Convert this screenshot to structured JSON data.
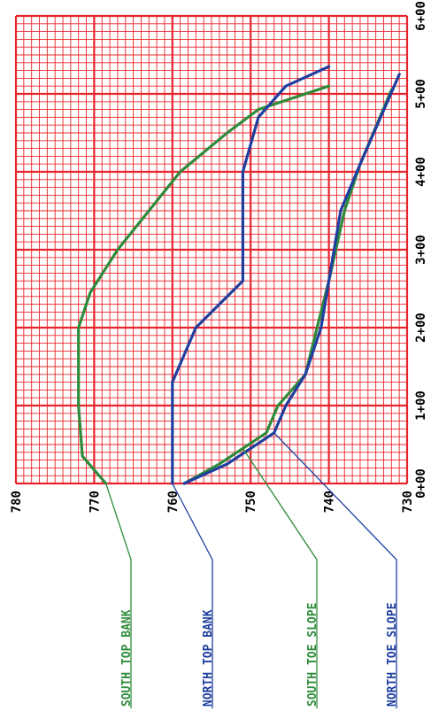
{
  "chart_data": {
    "type": "line",
    "orientation": "rotated",
    "x_label": "",
    "y_label": "",
    "x_ticks": [
      "0+00",
      "1+00",
      "2+00",
      "3+00",
      "4+00",
      "5+00",
      "6+00"
    ],
    "y_ticks": [
      "730",
      "740",
      "750",
      "760",
      "770",
      "780"
    ],
    "x_range": [
      0,
      600
    ],
    "y_range": [
      730,
      780
    ],
    "grid": true,
    "grid_color": "#e8242c",
    "series": [
      {
        "name": "SOUTH TOP BANK",
        "color": "#2e8b3a",
        "points": [
          [
            0,
            768.5
          ],
          [
            35,
            771.5
          ],
          [
            100,
            772
          ],
          [
            200,
            772
          ],
          [
            245,
            770.5
          ],
          [
            300,
            767
          ],
          [
            350,
            763
          ],
          [
            400,
            759
          ],
          [
            450,
            753
          ],
          [
            480,
            749
          ],
          [
            510,
            740
          ]
        ]
      },
      {
        "name": "NORTH TOP BANK",
        "color": "#1f3f9f",
        "points": [
          [
            0,
            760
          ],
          [
            130,
            760
          ],
          [
            200,
            757
          ],
          [
            260,
            751
          ],
          [
            350,
            751
          ],
          [
            400,
            751
          ],
          [
            470,
            749
          ],
          [
            510,
            745.5
          ],
          [
            535,
            740
          ]
        ]
      },
      {
        "name": "SOUTH TOE SLOPE",
        "color": "#2e8b3a",
        "points": [
          [
            0,
            758.5
          ],
          [
            25,
            754
          ],
          [
            45,
            751
          ],
          [
            65,
            748
          ],
          [
            100,
            746.5
          ],
          [
            140,
            743
          ],
          [
            200,
            741.5
          ],
          [
            260,
            740
          ],
          [
            350,
            738
          ],
          [
            410,
            736
          ],
          [
            505,
            732
          ]
        ]
      },
      {
        "name": "NORTH TOE SLOPE",
        "color": "#1f3f9f",
        "points": [
          [
            0,
            758.5
          ],
          [
            25,
            753
          ],
          [
            45,
            750
          ],
          [
            65,
            747
          ],
          [
            100,
            745.5
          ],
          [
            140,
            743
          ],
          [
            200,
            741
          ],
          [
            260,
            740
          ],
          [
            350,
            738.5
          ],
          [
            410,
            736
          ],
          [
            525,
            731
          ]
        ]
      }
    ]
  }
}
